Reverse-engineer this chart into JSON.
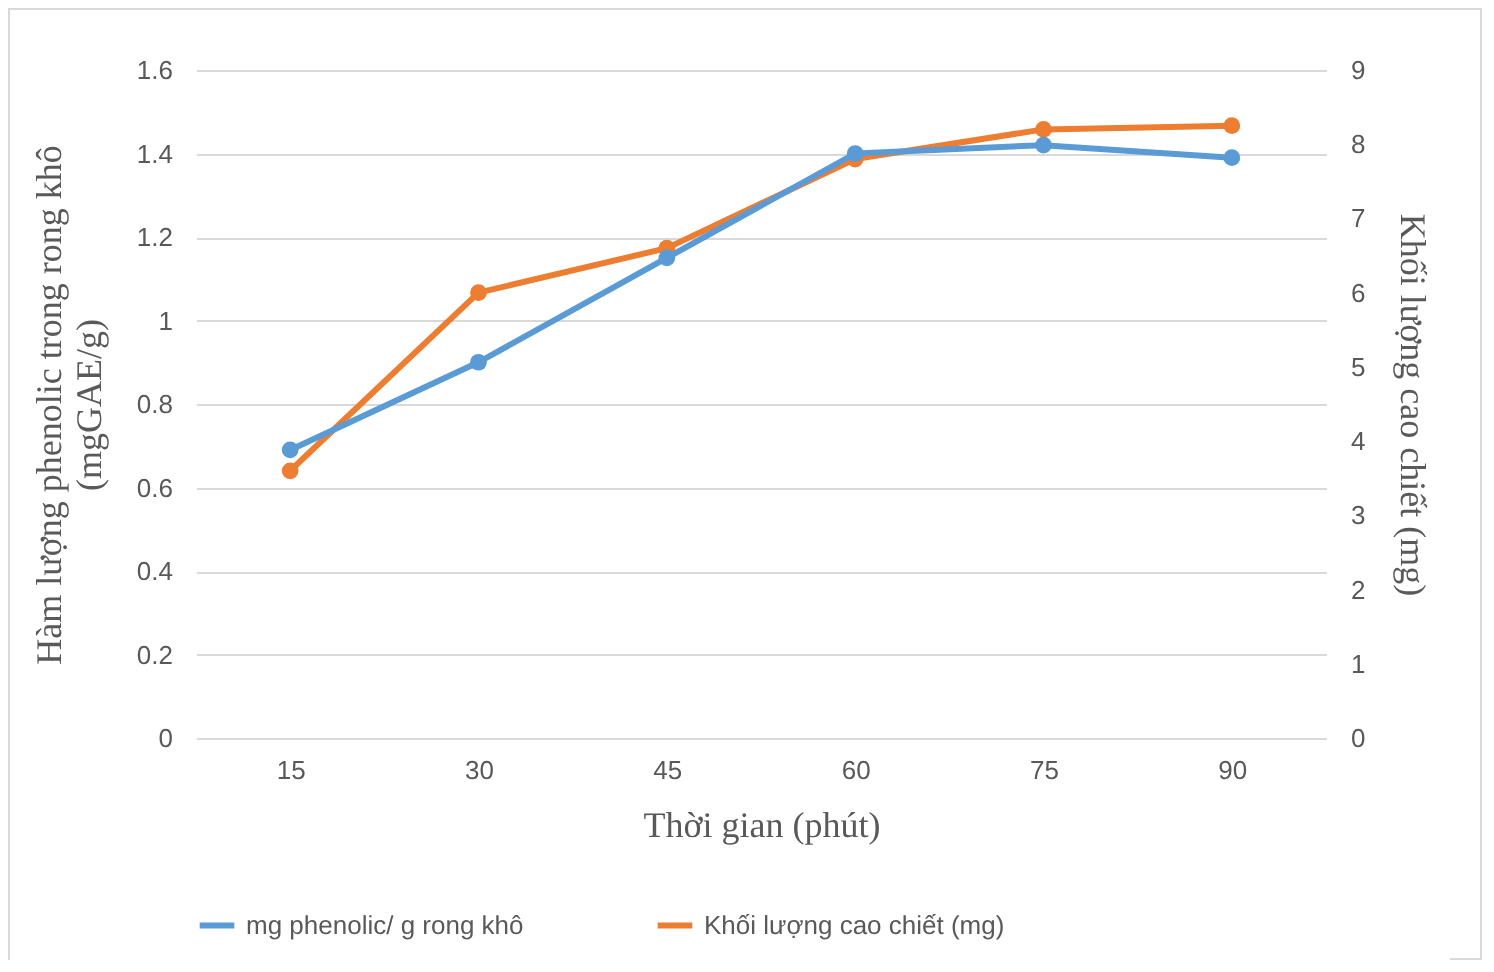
{
  "chart_data": {
    "type": "line",
    "xlabel": "Thời gian (phút)",
    "ylabel": "Hàm lượng phenolic trong rong khô\n(mgGAE/g)",
    "y2label": "Khối lượng cao chiết (mg)",
    "categories": [
      "15",
      "30",
      "45",
      "60",
      "75",
      "90"
    ],
    "series": [
      {
        "name": "mg phenolic/ g rong khô",
        "color": "#5b9bd5",
        "values": [
          0.69,
          0.9,
          1.15,
          1.4,
          1.42,
          1.39
        ]
      },
      {
        "name": "Khối lượng cao chiết (mg)",
        "color": "#ed7d31",
        "axis": "y2",
        "values": [
          3.6,
          6.0,
          6.6,
          7.8,
          8.2,
          8.25
        ]
      }
    ],
    "ylim": [
      0,
      1.6
    ],
    "yticks": [
      0,
      0.2,
      0.4,
      0.6,
      0.8,
      1,
      1.2,
      1.4,
      1.6
    ],
    "y2lim": [
      0,
      9
    ],
    "y2ticks": [
      0,
      1,
      2,
      3,
      4,
      5,
      6,
      7,
      8,
      9
    ],
    "grid": "y",
    "legend": "bottom",
    "marker": "circle",
    "line_style": "solid"
  }
}
